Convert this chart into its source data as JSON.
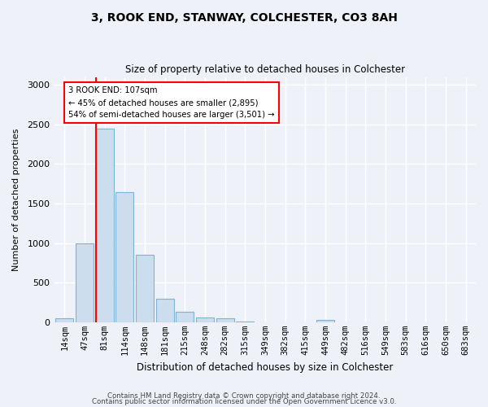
{
  "title1": "3, ROOK END, STANWAY, COLCHESTER, CO3 8AH",
  "title2": "Size of property relative to detached houses in Colchester",
  "xlabel": "Distribution of detached houses by size in Colchester",
  "ylabel": "Number of detached properties",
  "categories": [
    "14sqm",
    "47sqm",
    "81sqm",
    "114sqm",
    "148sqm",
    "181sqm",
    "215sqm",
    "248sqm",
    "282sqm",
    "315sqm",
    "349sqm",
    "382sqm",
    "415sqm",
    "449sqm",
    "482sqm",
    "516sqm",
    "549sqm",
    "583sqm",
    "616sqm",
    "650sqm",
    "683sqm"
  ],
  "values": [
    50,
    1000,
    2450,
    1650,
    850,
    300,
    130,
    60,
    50,
    10,
    0,
    0,
    0,
    30,
    0,
    0,
    0,
    0,
    0,
    0,
    0
  ],
  "bar_color": "#ccdded",
  "bar_edge_color": "#7fb3d3",
  "annotation_text": "3 ROOK END: 107sqm\n← 45% of detached houses are smaller (2,895)\n54% of semi-detached houses are larger (3,501) →",
  "annotation_box_color": "white",
  "annotation_box_edge_color": "red",
  "property_line_color": "red",
  "ylim": [
    0,
    3100
  ],
  "yticks": [
    0,
    500,
    1000,
    1500,
    2000,
    2500,
    3000
  ],
  "footer1": "Contains HM Land Registry data © Crown copyright and database right 2024.",
  "footer2": "Contains public sector information licensed under the Open Government Licence v3.0.",
  "background_color": "#eef2f8",
  "grid_color": "white"
}
